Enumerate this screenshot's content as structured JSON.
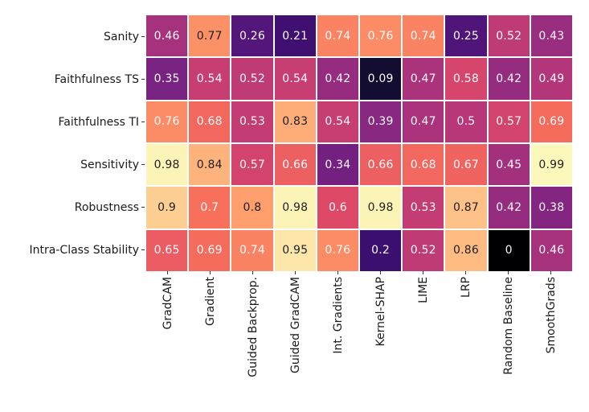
{
  "chart_data": {
    "type": "heatmap",
    "title": "",
    "xlabel": "",
    "ylabel": "",
    "rows": [
      "Sanity",
      "Faithfulness TS",
      "Faithfulness TI",
      "Sensitivity",
      "Robustness",
      "Intra-Class Stability"
    ],
    "columns": [
      "GradCAM",
      "Gradient",
      "Guided Backprop.",
      "Guided GradCAM",
      "Int. Gradients",
      "Kernel-SHAP",
      "LIME",
      "LRP",
      "Random Baseline",
      "SmoothGrads"
    ],
    "values": [
      [
        0.46,
        0.77,
        0.26,
        0.21,
        0.74,
        0.76,
        0.74,
        0.25,
        0.52,
        0.43
      ],
      [
        0.35,
        0.54,
        0.52,
        0.54,
        0.42,
        0.09,
        0.47,
        0.58,
        0.42,
        0.49
      ],
      [
        0.76,
        0.68,
        0.53,
        0.83,
        0.54,
        0.39,
        0.47,
        0.5,
        0.57,
        0.69
      ],
      [
        0.98,
        0.84,
        0.57,
        0.66,
        0.34,
        0.66,
        0.68,
        0.67,
        0.45,
        0.99
      ],
      [
        0.9,
        0.7,
        0.8,
        0.98,
        0.6,
        0.98,
        0.53,
        0.87,
        0.42,
        0.38
      ],
      [
        0.65,
        0.69,
        0.74,
        0.95,
        0.76,
        0.2,
        0.52,
        0.86,
        0,
        0.46
      ]
    ],
    "value_range": [
      0,
      1
    ],
    "colormap": "magma",
    "colormap_stops": [
      "#000004",
      "#140e36",
      "#3b0f70",
      "#641a80",
      "#8c2981",
      "#b73779",
      "#de4968",
      "#f7705c",
      "#fe9f6d",
      "#fecf92",
      "#fcfdbf"
    ],
    "cell_text_color_light": "#fafafa",
    "cell_text_color_dark": "#1f1f1f",
    "text_color_threshold": 0.765,
    "grid_line_color": "#ffffff",
    "axis_label_color": "#1a1a1a",
    "legend": "none",
    "grid": "off"
  }
}
